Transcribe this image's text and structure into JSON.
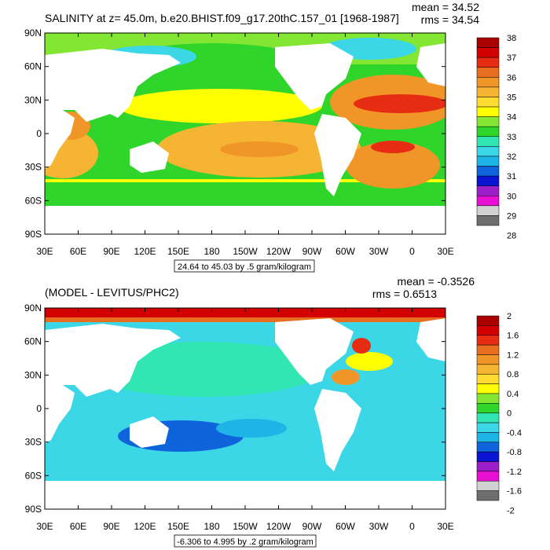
{
  "palette": [
    "#6e6e6e",
    "#d2d2d2",
    "#e60fd2",
    "#9b1ec8",
    "#0a14d2",
    "#0f64dc",
    "#1eb4e6",
    "#3cd7e6",
    "#32e6b4",
    "#2fd52a",
    "#82e632",
    "#ffff00",
    "#ffdc32",
    "#f5b432",
    "#f09628",
    "#e66e1e",
    "#e62d14",
    "#d20000",
    "#aa0000"
  ],
  "land_color": "#ffffff",
  "panels": [
    {
      "title": "SALINITY at z=  45.0m, b.e20.BHIST.f09_g17.20thC.157_01 [1968-1987]",
      "mean_text": "mean = 34.52",
      "rms_text": "rms = 34.54",
      "range_text": "24.64 to 45.03 by .5 gram/kilogram",
      "colorbar_labels": [
        "38",
        "37",
        "36",
        "35",
        "34",
        "33",
        "32",
        "31",
        "30",
        "29",
        "28"
      ]
    },
    {
      "title": "(MODEL - LEVITUS/PHC2)",
      "mean_text": "mean = -0.3526",
      "rms_text": "rms = 0.6513",
      "range_text": "-6.306 to 4.995 by .2 gram/kilogram",
      "colorbar_labels": [
        "2",
        "1.6",
        "1.2",
        "0.8",
        "0.4",
        "0",
        "-0.4",
        "-0.8",
        "-1.2",
        "-1.6",
        "-2"
      ]
    }
  ],
  "axes": {
    "x_ticks": [
      "30E",
      "60E",
      "90E",
      "120E",
      "150E",
      "180",
      "150W",
      "120W",
      "90W",
      "60W",
      "30W",
      "0",
      "30E"
    ],
    "y_ticks": [
      "90N",
      "60N",
      "30N",
      "0",
      "30S",
      "60S",
      "90S"
    ]
  },
  "chart_data": [
    {
      "type": "heatmap",
      "title": "SALINITY at z=  45.0m, b.e20.BHIST.f09_g17.20thC.157_01 [1968-1987]",
      "x_range": [
        "30E",
        "30E"
      ],
      "y_range": [
        "90S",
        "90N"
      ],
      "colorbar_levels": [
        28,
        29,
        30,
        31,
        32,
        33,
        34,
        35,
        36,
        37,
        38
      ],
      "mean": 34.52,
      "rms": 34.54,
      "contour": {
        "min": 24.64,
        "max": 45.03,
        "interval": 0.5,
        "units": "gram/kilogram"
      }
    },
    {
      "type": "heatmap",
      "title": "(MODEL - LEVITUS/PHC2)",
      "x_range": [
        "30E",
        "30E"
      ],
      "y_range": [
        "90S",
        "90N"
      ],
      "colorbar_levels": [
        -2,
        -1.6,
        -1.2,
        -0.8,
        -0.4,
        0,
        0.4,
        0.8,
        1.2,
        1.6,
        2
      ],
      "mean": -0.3526,
      "rms": 0.6513,
      "contour": {
        "min": -6.306,
        "max": 4.995,
        "interval": 0.2,
        "units": "gram/kilogram"
      }
    }
  ]
}
